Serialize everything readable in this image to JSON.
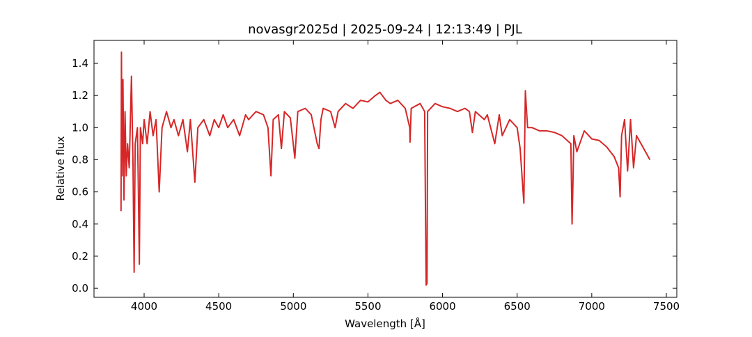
{
  "chart_data": {
    "type": "line",
    "title": "novasgr2025d | 2025-09-24 | 12:13:49 | PJL",
    "x_label": "Wavelength [Å]",
    "y_label": "Relative flux",
    "color": "#d62728",
    "x": [
      3845,
      3848,
      3852,
      3858,
      3865,
      3872,
      3880,
      3889,
      3900,
      3915,
      3925,
      3933,
      3940,
      3955,
      3960,
      3968,
      3975,
      3990,
      4000,
      4020,
      4040,
      4060,
      4080,
      4101,
      4120,
      4150,
      4180,
      4200,
      4230,
      4260,
      4290,
      4310,
      4340,
      4360,
      4400,
      4440,
      4470,
      4500,
      4530,
      4560,
      4600,
      4640,
      4680,
      4700,
      4750,
      4800,
      4830,
      4850,
      4865,
      4900,
      4920,
      4940,
      4980,
      5010,
      5030,
      5080,
      5120,
      5160,
      5172,
      5185,
      5200,
      5250,
      5280,
      5300,
      5350,
      5400,
      5450,
      5500,
      5550,
      5580,
      5620,
      5650,
      5700,
      5750,
      5780,
      5782,
      5790,
      5850,
      5880,
      5890,
      5896,
      5900,
      5950,
      6000,
      6050,
      6100,
      6150,
      6180,
      6200,
      6220,
      6280,
      6300,
      6350,
      6380,
      6400,
      6450,
      6500,
      6520,
      6545,
      6555,
      6570,
      6600,
      6650,
      6700,
      6750,
      6800,
      6860,
      6868,
      6875,
      6880,
      6900,
      6950,
      7000,
      7050,
      7100,
      7150,
      7180,
      7190,
      7200,
      7220,
      7240,
      7260,
      7280,
      7300,
      7330,
      7360,
      7390
    ],
    "values": [
      0.48,
      1.47,
      0.7,
      1.3,
      0.55,
      1.1,
      0.7,
      0.9,
      0.75,
      1.32,
      0.8,
      0.1,
      0.9,
      1.0,
      0.7,
      0.15,
      1.0,
      0.9,
      1.05,
      0.9,
      1.1,
      0.95,
      1.05,
      0.6,
      1.0,
      1.1,
      1.0,
      1.05,
      0.95,
      1.05,
      0.85,
      1.05,
      0.66,
      1.0,
      1.05,
      0.95,
      1.05,
      1.0,
      1.08,
      1.0,
      1.05,
      0.95,
      1.08,
      1.05,
      1.1,
      1.08,
      1.0,
      0.7,
      1.05,
      1.08,
      0.87,
      1.1,
      1.06,
      0.81,
      1.1,
      1.12,
      1.08,
      0.9,
      0.87,
      1.05,
      1.12,
      1.1,
      1.0,
      1.1,
      1.15,
      1.12,
      1.17,
      1.16,
      1.2,
      1.22,
      1.17,
      1.15,
      1.17,
      1.12,
      1.0,
      0.91,
      1.12,
      1.15,
      1.1,
      0.02,
      0.03,
      1.1,
      1.15,
      1.13,
      1.12,
      1.1,
      1.12,
      1.1,
      0.97,
      1.1,
      1.05,
      1.08,
      0.9,
      1.08,
      0.95,
      1.05,
      1.0,
      0.87,
      0.53,
      1.23,
      1.0,
      1.0,
      0.98,
      0.98,
      0.97,
      0.95,
      0.9,
      0.4,
      0.7,
      0.95,
      0.85,
      0.98,
      0.93,
      0.92,
      0.88,
      0.82,
      0.75,
      0.57,
      0.95,
      1.05,
      0.73,
      1.05,
      0.75,
      0.95,
      0.9,
      0.85,
      0.8
    ],
    "xlim": [
      3664,
      7570
    ],
    "ylim": [
      -0.056,
      1.543
    ],
    "xticks": [
      4000,
      4500,
      5000,
      5500,
      6000,
      6500,
      7000,
      7500
    ],
    "yticks": [
      {
        "value": 0,
        "label": "0.0"
      },
      0.2,
      0.4,
      0.6,
      0.8,
      {
        "value": 1,
        "label": "1.0"
      },
      1.2,
      1.4
    ]
  }
}
